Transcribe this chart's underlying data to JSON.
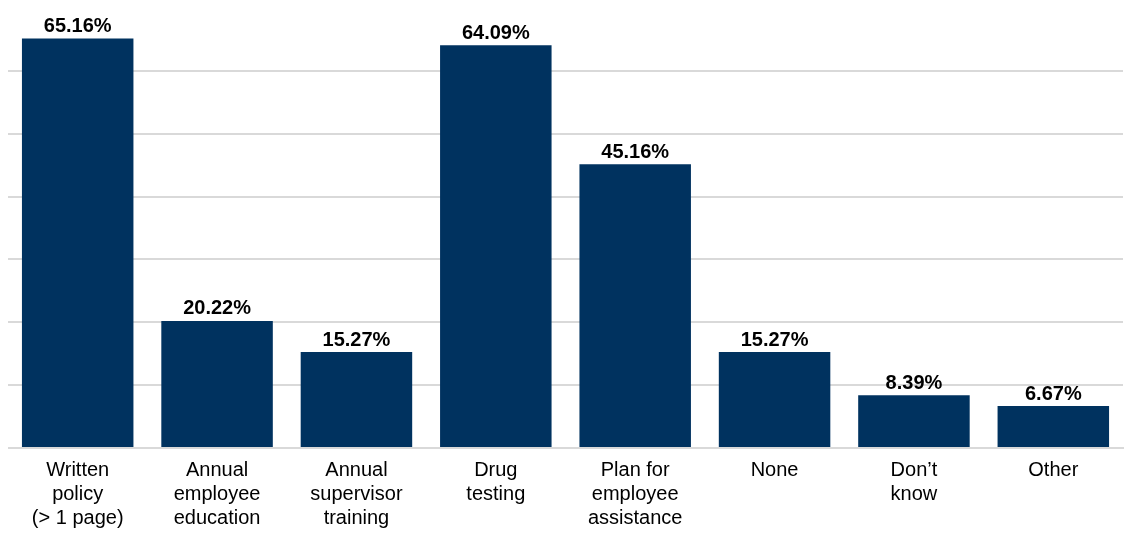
{
  "chart_data": {
    "type": "bar",
    "categories": [
      "Written policy (> 1 page)",
      "Annual employee education",
      "Annual supervisor training",
      "Drug testing",
      "Plan for employee assistance",
      "None",
      "Don’t know",
      "Other"
    ],
    "values": [
      65.16,
      20.22,
      15.27,
      64.09,
      45.16,
      15.27,
      8.39,
      6.67
    ],
    "value_labels": [
      "65.16%",
      "20.22%",
      "15.27%",
      "64.09%",
      "45.16%",
      "15.27%",
      "8.39%",
      "6.67%"
    ],
    "color": "#00325f",
    "yticks": [
      0,
      10,
      20,
      30,
      40,
      50,
      60
    ],
    "grid": "y",
    "tick_labels": "x",
    "legend": false
  }
}
